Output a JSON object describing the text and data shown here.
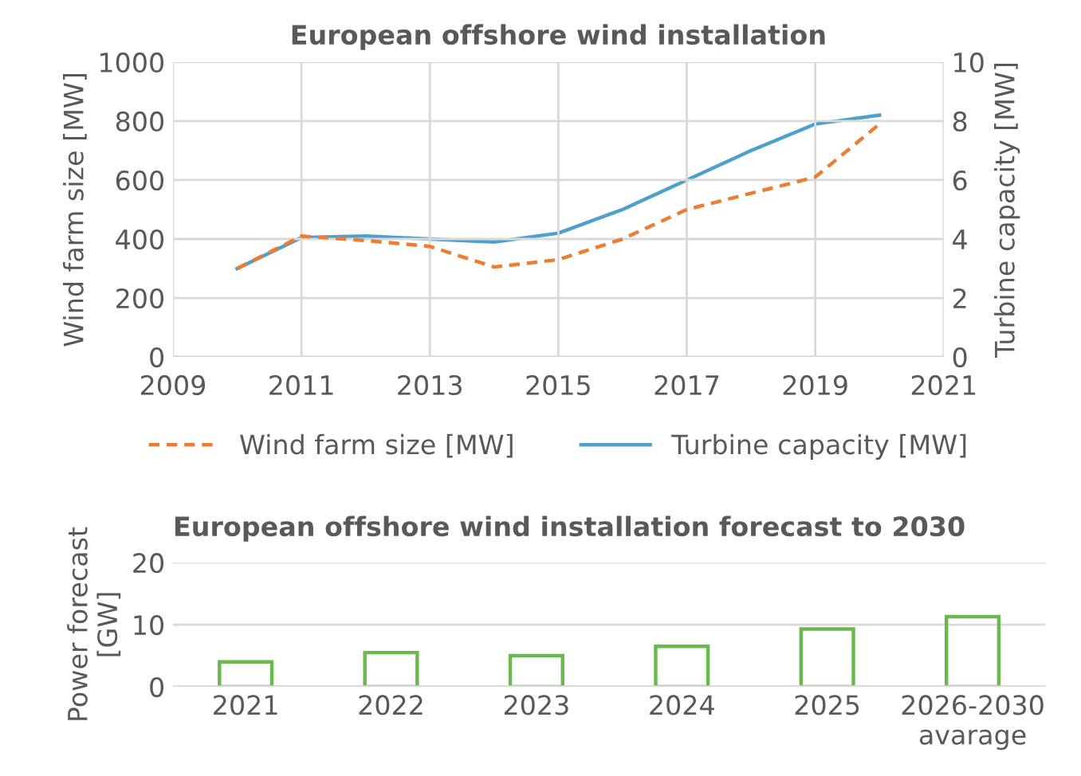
{
  "chart_data": [
    {
      "type": "line",
      "title": "European offshore wind installation",
      "ylabel": "Wind farm size [MW]",
      "y2label": "Turbine capacity [MW]",
      "x": [
        2010,
        2011,
        2012,
        2013,
        2014,
        2015,
        2016,
        2017,
        2018,
        2019,
        2020
      ],
      "series": [
        {
          "name": "Wind farm size [MW]",
          "color": "#ed7d31",
          "line_style": "dashed",
          "values": [
            300,
            410,
            395,
            375,
            305,
            330,
            400,
            500,
            555,
            610,
            790
          ]
        },
        {
          "name": "Turbine capacity [MW]",
          "color": "#4ea0cc",
          "line_style": "solid",
          "axis": "y2",
          "values": [
            3.0,
            4.05,
            4.1,
            4.0,
            3.9,
            4.2,
            5.0,
            6.0,
            7.0,
            7.9,
            8.2
          ]
        }
      ],
      "xlim": [
        2009,
        2021
      ],
      "xticks": [
        2009,
        2011,
        2013,
        2015,
        2017,
        2019,
        2021
      ],
      "ylim": [
        0,
        1000
      ],
      "yticks": [
        0,
        200,
        400,
        600,
        800,
        1000
      ],
      "y2lim": [
        0,
        10
      ],
      "y2ticks": [
        0,
        2,
        4,
        6,
        8,
        10
      ],
      "grid": true,
      "legend": "bottom"
    },
    {
      "type": "bar",
      "title": "European offshore wind installation forecast to 2030",
      "ylabel": "Power forecast\n[GW]",
      "categories": [
        "2021",
        "2022",
        "2023",
        "2024",
        "2025",
        "2026-2030\navarage"
      ],
      "values": [
        4,
        5.5,
        5,
        6.5,
        9.3,
        11.3
      ],
      "color": "#6ab94e",
      "ylim": [
        0,
        20
      ],
      "yticks": [
        0,
        10,
        20
      ],
      "grid": "y"
    }
  ]
}
